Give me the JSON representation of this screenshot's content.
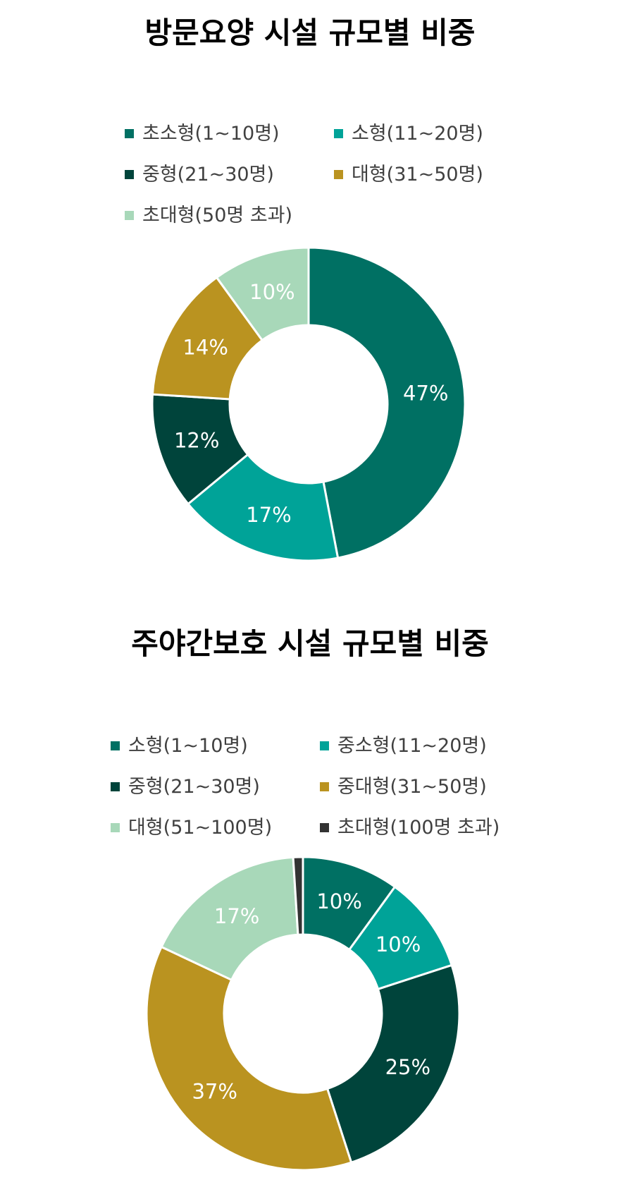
{
  "chart_data": [
    {
      "type": "pie",
      "title": "방문요양 시설 규모별 비중",
      "legend_placement": "top",
      "categories": [
        "초소형(1~10명)",
        "소형(11~20명)",
        "중형(21~30명)",
        "대형(31~50명)",
        "초대형(50명 초과)"
      ],
      "values": [
        47,
        17,
        12,
        14,
        10
      ],
      "data_labels": [
        "47%",
        "17%",
        "12%",
        "14%",
        "10%"
      ],
      "colors": [
        "#007063",
        "#00A398",
        "#00443B",
        "#BA9320",
        "#A8D8B9"
      ]
    },
    {
      "type": "pie",
      "title": "주야간보호 시설 규모별 비중",
      "legend_placement": "top",
      "categories": [
        "소형(1~10명)",
        "중소형(11~20명)",
        "중형(21~30명)",
        "중대형(31~50명)",
        "대형(51~100명)",
        "초대형(100명 초과)"
      ],
      "values": [
        10,
        10,
        25,
        37,
        17,
        1
      ],
      "data_labels": [
        "10%",
        "10%",
        "25%",
        "37%",
        "17%",
        ""
      ],
      "colors": [
        "#007063",
        "#00A398",
        "#00443B",
        "#BA9320",
        "#A8D8B9",
        "#333333"
      ]
    }
  ]
}
